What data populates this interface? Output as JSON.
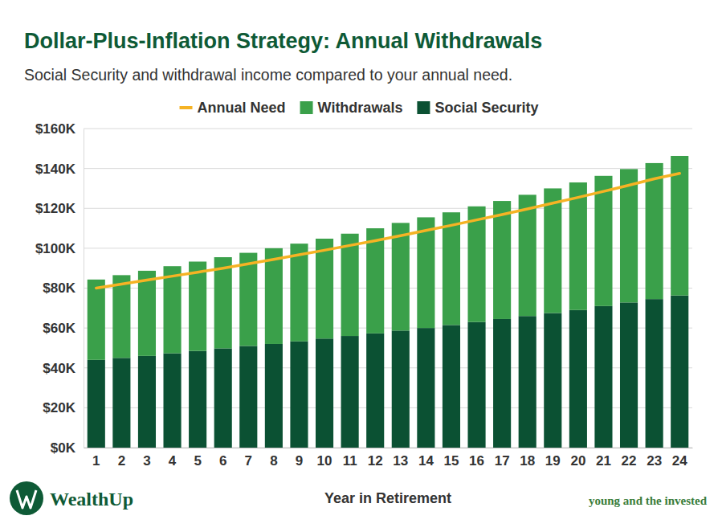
{
  "chart_data": {
    "type": "bar",
    "stacked": true,
    "grid": true,
    "title": "Dollar-Plus-Inflation Strategy: Annual Withdrawals",
    "subtitle": "Social Security and withdrawal income compared to your annual need.",
    "x_label": "Year in Retirement",
    "annotations": [
      "WealthUp",
      "young and the invested"
    ],
    "legend": "top",
    "categories": [
      "1",
      "2",
      "3",
      "4",
      "5",
      "6",
      "7",
      "8",
      "9",
      "10",
      "11",
      "12",
      "13",
      "14",
      "15",
      "16",
      "17",
      "18",
      "19",
      "20",
      "21",
      "22",
      "23",
      "24"
    ],
    "series": [
      {
        "name": "Annual Need",
        "type": "line",
        "color": "#f5b324",
        "values": [
          80000,
          82000,
          84000,
          86000,
          88000,
          90000,
          92200,
          94400,
          96700,
          99000,
          101400,
          103800,
          106300,
          108900,
          111500,
          114200,
          116900,
          119700,
          122600,
          125500,
          128500,
          131600,
          134800,
          137500
        ]
      },
      {
        "name": "Withdrawals",
        "type": "bar",
        "color": "#3aa04a",
        "values": [
          40300,
          41500,
          42700,
          43700,
          44800,
          45700,
          46700,
          48000,
          49000,
          50100,
          51300,
          52700,
          54000,
          55500,
          56500,
          58000,
          59200,
          60800,
          62500,
          64000,
          65300,
          66900,
          68200,
          70000
        ]
      },
      {
        "name": "Social Security",
        "type": "bar",
        "color": "#0b5133",
        "values": [
          44000,
          45000,
          46000,
          47300,
          48500,
          49800,
          51000,
          52000,
          53300,
          54700,
          56000,
          57300,
          58700,
          60000,
          61500,
          63000,
          64500,
          66000,
          67500,
          69000,
          71000,
          72800,
          74500,
          76300
        ]
      }
    ],
    "ylim": [
      0,
      160000
    ],
    "yticks": [
      {
        "value": 0,
        "label": "$0K"
      },
      {
        "value": 20000,
        "label": "$20K"
      },
      {
        "value": 40000,
        "label": "$40K"
      },
      {
        "value": 60000,
        "label": "$60K"
      },
      {
        "value": 80000,
        "label": "$80K"
      },
      {
        "value": 100000,
        "label": "$100K"
      },
      {
        "value": 120000,
        "label": "$120K"
      },
      {
        "value": 140000,
        "label": "$140K"
      },
      {
        "value": 160000,
        "label": "$160K"
      }
    ]
  }
}
